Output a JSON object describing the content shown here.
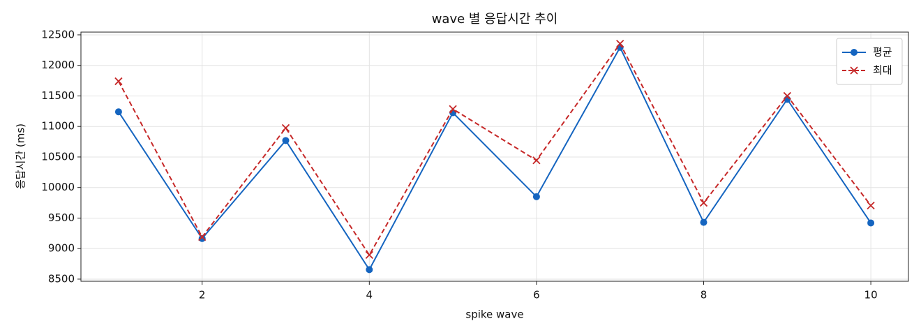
{
  "chart_data": {
    "type": "line",
    "title": "wave 별 응답시간 추이",
    "x_label": "spike wave",
    "y_label": "응답시간 (ms)",
    "x": [
      1,
      2,
      3,
      4,
      5,
      6,
      7,
      8,
      9,
      10
    ],
    "series": [
      {
        "name": "평균",
        "color": "#1565c0",
        "marker": "o",
        "dashed": false,
        "values": [
          11240,
          9165,
          10770,
          8655,
          11225,
          9850,
          12295,
          9430,
          11445,
          9420
        ]
      },
      {
        "name": "최대",
        "color": "#c62828",
        "marker": "x",
        "dashed": true,
        "values": [
          11740,
          9190,
          10975,
          8895,
          11285,
          10445,
          12355,
          9750,
          11500,
          9705
        ]
      }
    ],
    "xlim": [
      0.55,
      10.45
    ],
    "xticks": [
      2,
      4,
      6,
      8,
      10
    ],
    "ylim": [
      8465,
      12545
    ],
    "yticks": [
      8500,
      9000,
      9500,
      10000,
      10500,
      11000,
      11500,
      12000,
      12500
    ],
    "grid": true,
    "legend": "upper right"
  }
}
